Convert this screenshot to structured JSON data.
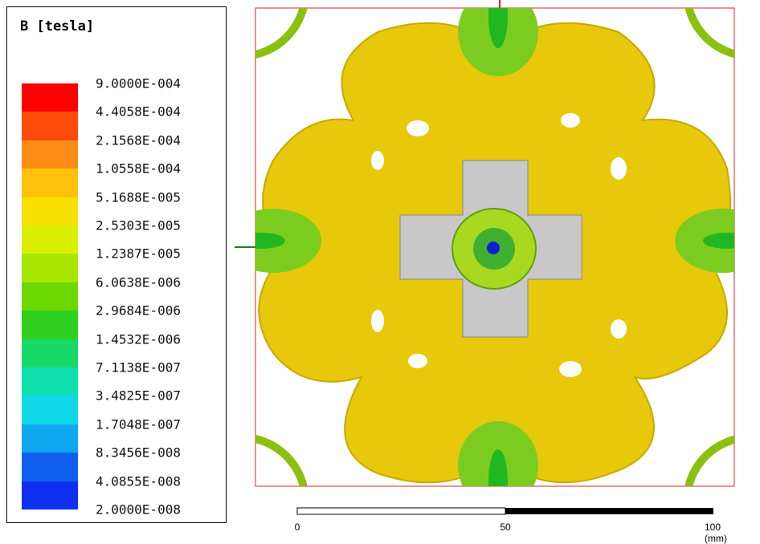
{
  "legend": {
    "title": "B [tesla]",
    "labels": [
      "9.0000E-004",
      "4.4058E-004",
      "2.1568E-004",
      "1.0558E-004",
      "5.1688E-005",
      "2.5303E-005",
      "1.2387E-005",
      "6.0638E-006",
      "2.9684E-006",
      "1.4532E-006",
      "7.1138E-007",
      "3.4825E-007",
      "1.7048E-007",
      "8.3456E-008",
      "4.0855E-008",
      "2.0000E-008"
    ],
    "colors": [
      "#ff0000",
      "#ff4a0a",
      "#ff8c14",
      "#ffc20a",
      "#f6e000",
      "#d8f000",
      "#a6e600",
      "#6cd800",
      "#30d020",
      "#18d868",
      "#10e0b0",
      "#10d8e8",
      "#10a8f0",
      "#1060f0",
      "#1030f0"
    ]
  },
  "scale_bar": {
    "labels": [
      "0",
      "50",
      "100 (mm)"
    ]
  }
}
